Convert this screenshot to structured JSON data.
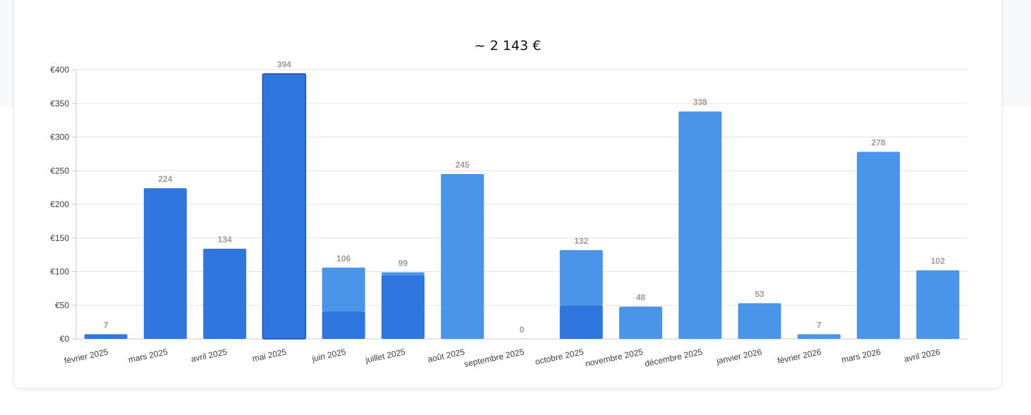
{
  "header": {
    "total": "~ 2 143 €"
  },
  "colors": {
    "primary": "#4a95ea",
    "secondary": "#2f76df",
    "highlight_stroke": "#1f4fb0",
    "grid": "#e3e3e3",
    "value_label": "#a39a8e"
  },
  "chart_data": {
    "type": "bar",
    "stacked": true,
    "title": "~ 2 143 €",
    "xlabel": "",
    "ylabel": "",
    "ylim": [
      0,
      400
    ],
    "yticks": [
      0,
      50,
      100,
      150,
      200,
      250,
      300,
      350,
      400
    ],
    "ytick_labels": [
      "€0",
      "€50",
      "€100",
      "€150",
      "€200",
      "€250",
      "€300",
      "€350",
      "€400"
    ],
    "grid": true,
    "categories": [
      "février 2025",
      "mars 2025",
      "avril 2025",
      "mai 2025",
      "juin 2025",
      "juillet 2025",
      "août 2025",
      "septembre 2025",
      "octobre 2025",
      "novembre 2025",
      "décembre 2025",
      "janvier 2026",
      "février 2026",
      "mars 2026",
      "avril 2026"
    ],
    "totals": [
      7,
      224,
      134,
      394,
      106,
      99,
      245,
      0,
      132,
      48,
      338,
      53,
      7,
      278,
      102
    ],
    "total_labels": [
      "7",
      "224",
      "134",
      "394",
      "106",
      "99",
      "245",
      "0",
      "132",
      "48",
      "338",
      "53",
      "7",
      "278",
      "102"
    ],
    "series": [
      {
        "color": "#2f76df",
        "values": [
          7,
          224,
          134,
          394,
          41,
          95,
          0,
          0,
          50,
          0,
          0,
          0,
          0,
          0,
          0
        ]
      },
      {
        "color": "#4a95ea",
        "values": [
          0,
          0,
          0,
          0,
          65,
          4,
          245,
          0,
          82,
          48,
          338,
          53,
          7,
          278,
          102
        ]
      }
    ],
    "highlighted_category": "mai 2025"
  }
}
